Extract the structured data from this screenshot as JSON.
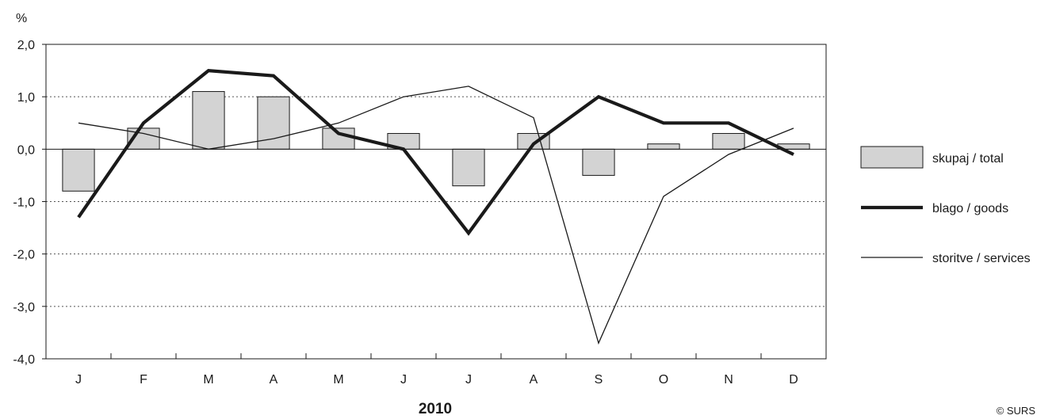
{
  "chart_data": {
    "type": "bar",
    "ylabel": "%",
    "xlabel": "2010",
    "ylim": [
      -4,
      2
    ],
    "yticks": [
      2,
      1,
      0,
      -1,
      -2,
      -3,
      -4
    ],
    "ytick_labels": [
      "2,0",
      "1,0",
      "0,0",
      "-1,0",
      "-2,0",
      "-3,0",
      "-4,0"
    ],
    "categories": [
      "J",
      "F",
      "M",
      "A",
      "M",
      "J",
      "J",
      "A",
      "S",
      "O",
      "N",
      "D"
    ],
    "series": [
      {
        "name": "skupaj / total",
        "kind": "bar",
        "values": [
          -0.8,
          0.4,
          1.1,
          1.0,
          0.4,
          0.3,
          -0.7,
          0.3,
          -0.5,
          0.1,
          0.3,
          0.1
        ]
      },
      {
        "name": "blago / goods",
        "kind": "line-thick",
        "values": [
          -1.3,
          0.5,
          1.5,
          1.4,
          0.3,
          0.0,
          -1.6,
          0.1,
          1.0,
          0.5,
          0.5,
          -0.1
        ]
      },
      {
        "name": "storitve / services",
        "kind": "line-thin",
        "values": [
          0.5,
          0.3,
          0.0,
          0.2,
          0.5,
          1.0,
          1.2,
          0.6,
          -3.7,
          -0.9,
          -0.1,
          0.4
        ]
      }
    ],
    "grid": "dotted horizontal",
    "legend_position": "right",
    "colors": {
      "bar_fill": "#d3d3d3",
      "line": "#1a1a1a"
    }
  },
  "footer": {
    "copyright": "© SURS"
  }
}
